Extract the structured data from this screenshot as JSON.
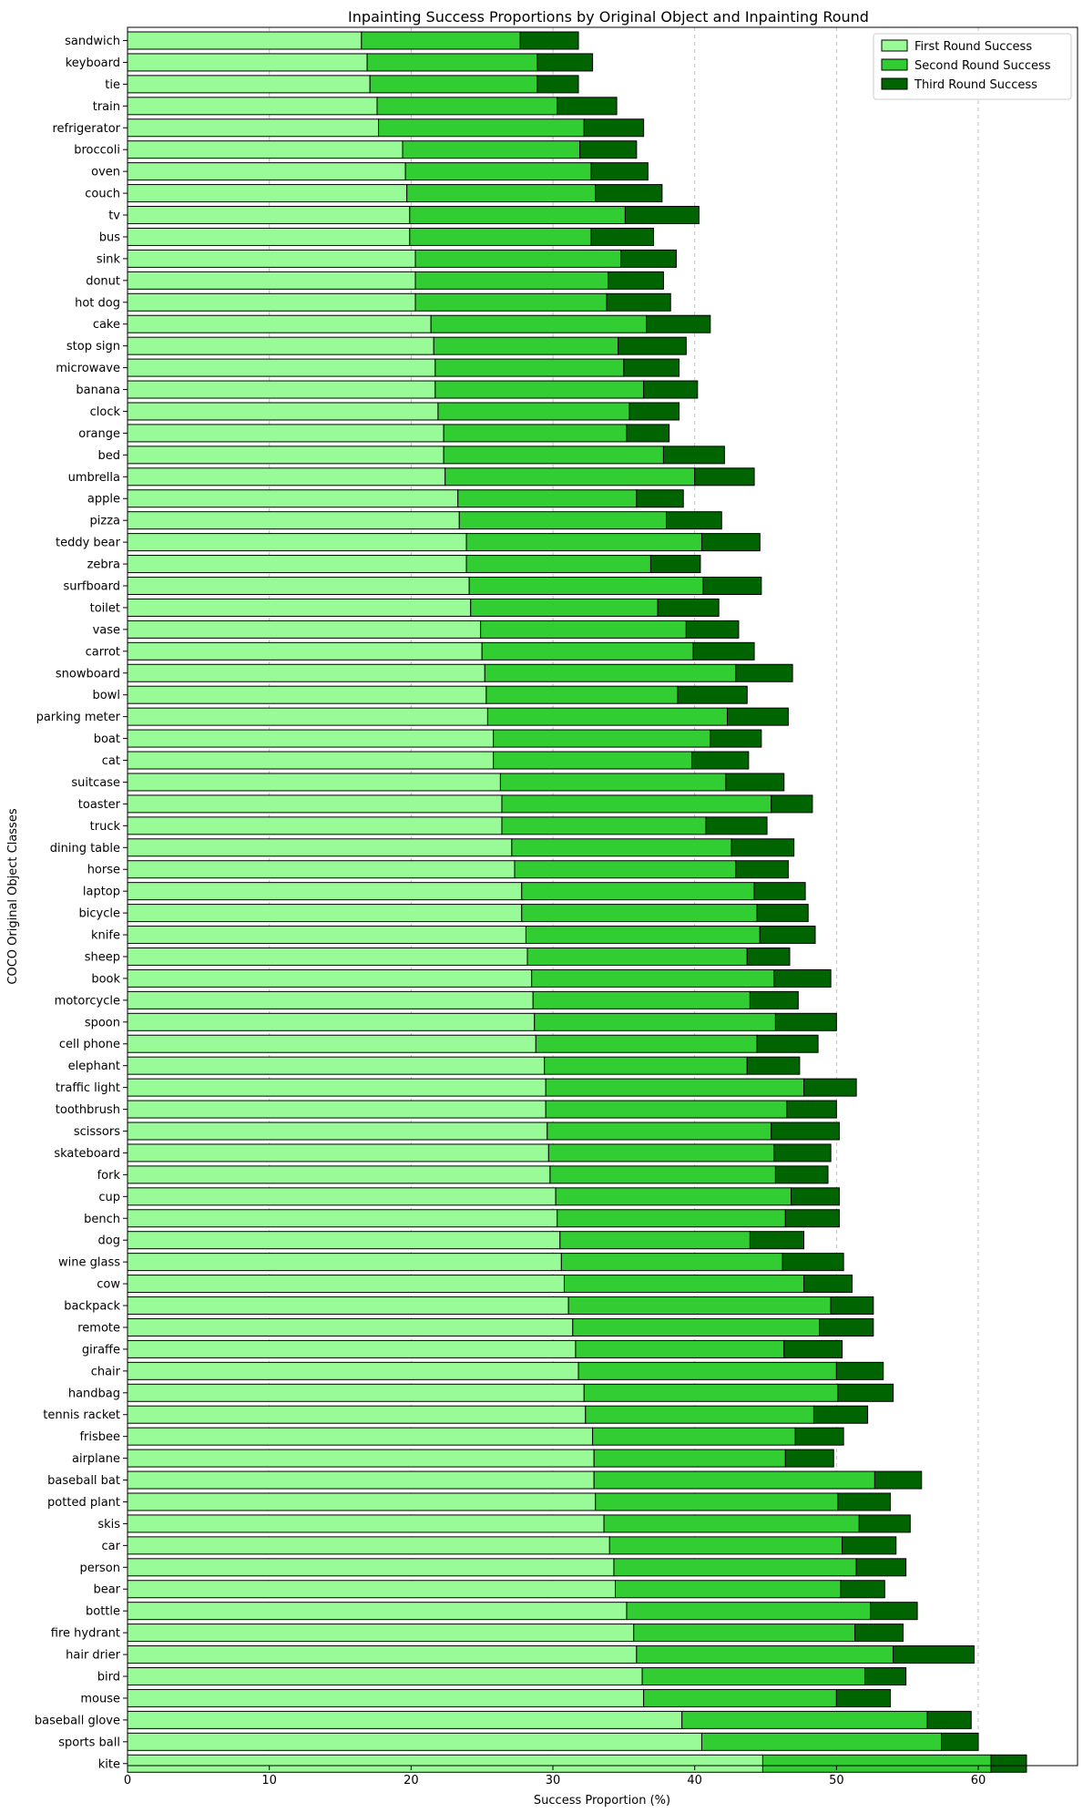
{
  "chart_data": {
    "type": "bar",
    "orientation": "horizontal",
    "stacked": true,
    "title": "Inpainting Success Proportions by Original Object and Inpainting Round",
    "xlabel": "Success Proportion (%)",
    "ylabel": "COCO Original Object Classes",
    "xlim": [
      0,
      67
    ],
    "xticks": [
      0,
      10,
      20,
      30,
      40,
      50,
      60
    ],
    "grid": "x-dashed",
    "legend_position": "top-right",
    "categories": [
      "sandwich",
      "keyboard",
      "tie",
      "train",
      "refrigerator",
      "broccoli",
      "oven",
      "couch",
      "tv",
      "bus",
      "sink",
      "donut",
      "hot dog",
      "cake",
      "stop sign",
      "microwave",
      "banana",
      "clock",
      "orange",
      "bed",
      "umbrella",
      "apple",
      "pizza",
      "teddy bear",
      "zebra",
      "surfboard",
      "toilet",
      "vase",
      "carrot",
      "snowboard",
      "bowl",
      "parking meter",
      "boat",
      "cat",
      "suitcase",
      "toaster",
      "truck",
      "dining table",
      "horse",
      "laptop",
      "bicycle",
      "knife",
      "sheep",
      "book",
      "motorcycle",
      "spoon",
      "cell phone",
      "elephant",
      "traffic light",
      "toothbrush",
      "scissors",
      "skateboard",
      "fork",
      "cup",
      "bench",
      "dog",
      "wine glass",
      "cow",
      "backpack",
      "remote",
      "giraffe",
      "chair",
      "handbag",
      "tennis racket",
      "frisbee",
      "airplane",
      "baseball bat",
      "potted plant",
      "skis",
      "car",
      "person",
      "bear",
      "bottle",
      "fire hydrant",
      "hair drier",
      "bird",
      "mouse",
      "baseball glove",
      "sports ball",
      "kite"
    ],
    "series": [
      {
        "name": "First Round Success",
        "color": "#98fb98",
        "values": [
          16.5,
          16.9,
          17.1,
          17.6,
          17.7,
          19.4,
          19.6,
          19.7,
          19.9,
          19.9,
          20.3,
          20.3,
          20.3,
          21.4,
          21.6,
          21.7,
          21.7,
          21.9,
          22.3,
          22.3,
          22.4,
          23.3,
          23.4,
          23.9,
          23.9,
          24.1,
          24.2,
          24.9,
          25.0,
          25.2,
          25.3,
          25.4,
          25.8,
          25.8,
          26.3,
          26.4,
          26.4,
          27.1,
          27.3,
          27.8,
          27.8,
          28.1,
          28.2,
          28.5,
          28.6,
          28.7,
          28.8,
          29.4,
          29.5,
          29.5,
          29.6,
          29.7,
          29.8,
          30.2,
          30.3,
          30.5,
          30.6,
          30.8,
          31.1,
          31.4,
          31.6,
          31.8,
          32.2,
          32.3,
          32.8,
          32.9,
          32.9,
          33.0,
          33.6,
          34.0,
          34.3,
          34.4,
          35.2,
          35.7,
          35.9,
          36.3,
          36.4,
          39.1,
          40.5,
          44.8
        ]
      },
      {
        "name": "Second Round Success",
        "color": "#32cd32",
        "values": [
          11.2,
          12.0,
          11.8,
          12.7,
          14.5,
          12.5,
          13.1,
          13.3,
          15.2,
          12.8,
          14.5,
          13.6,
          13.5,
          15.2,
          13.0,
          13.3,
          14.7,
          13.5,
          12.9,
          15.5,
          17.6,
          12.6,
          14.6,
          16.6,
          13.0,
          16.5,
          13.2,
          14.5,
          14.9,
          17.7,
          13.5,
          16.9,
          15.3,
          14.0,
          15.9,
          19.0,
          14.4,
          15.5,
          15.6,
          16.4,
          16.6,
          16.5,
          15.5,
          17.1,
          15.3,
          17.0,
          15.6,
          14.3,
          18.2,
          17.0,
          15.8,
          15.9,
          15.9,
          16.6,
          16.1,
          13.4,
          15.6,
          16.9,
          18.5,
          17.4,
          14.7,
          18.2,
          17.9,
          16.1,
          14.3,
          13.5,
          19.8,
          17.1,
          18.0,
          16.4,
          17.1,
          15.9,
          17.2,
          15.6,
          18.1,
          15.7,
          13.6,
          17.3,
          16.9,
          16.1
        ]
      },
      {
        "name": "Third Round Success",
        "color": "#006400",
        "values": [
          4.1,
          3.9,
          2.9,
          4.2,
          4.2,
          4.0,
          4.0,
          4.7,
          5.2,
          4.4,
          3.9,
          3.9,
          4.5,
          4.5,
          4.8,
          3.9,
          3.8,
          3.5,
          3.0,
          4.3,
          4.2,
          3.3,
          3.9,
          4.1,
          3.5,
          4.1,
          4.3,
          3.7,
          4.3,
          4.0,
          4.9,
          4.3,
          3.6,
          4.0,
          4.1,
          2.9,
          4.3,
          4.4,
          3.7,
          3.6,
          3.6,
          3.9,
          3.0,
          4.0,
          3.4,
          4.3,
          4.3,
          3.7,
          3.7,
          3.5,
          4.8,
          4.0,
          3.7,
          3.4,
          3.8,
          3.8,
          4.3,
          3.4,
          3.0,
          3.8,
          4.1,
          3.3,
          3.9,
          3.8,
          3.4,
          3.4,
          3.3,
          3.7,
          3.6,
          3.8,
          3.5,
          3.1,
          3.3,
          3.4,
          5.7,
          2.9,
          3.8,
          3.1,
          2.6,
          2.5
        ]
      }
    ]
  }
}
